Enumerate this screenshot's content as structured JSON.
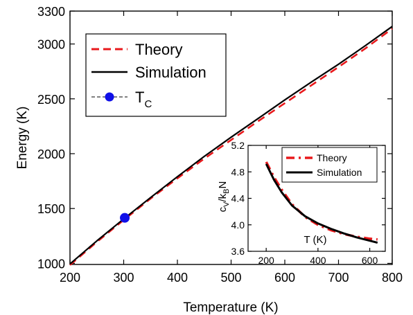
{
  "chart_data": [
    {
      "type": "line",
      "xlabel": "Temperature (K)",
      "ylabel": "Energy (K)",
      "xlim": [
        200,
        800
      ],
      "ylim": [
        990,
        3300
      ],
      "xticks": [
        200,
        300,
        400,
        500,
        600,
        700,
        800
      ],
      "yticks": [
        1000,
        1500,
        2000,
        2500,
        3000,
        3300
      ],
      "grid": false,
      "legend_position": "top-left",
      "series": [
        {
          "name": "Theory",
          "style": "dashed",
          "color": "#e8191c",
          "x": [
            200,
            250,
            300,
            350,
            400,
            450,
            500,
            550,
            600,
            650,
            700,
            750,
            800
          ],
          "y": [
            985,
            1195,
            1395,
            1590,
            1775,
            1955,
            2125,
            2295,
            2460,
            2625,
            2790,
            2960,
            3140
          ]
        },
        {
          "name": "Simulation",
          "style": "solid",
          "color": "#000000",
          "x": [
            200,
            250,
            300,
            350,
            400,
            450,
            500,
            550,
            600,
            650,
            700,
            750,
            800
          ],
          "y": [
            995,
            1205,
            1405,
            1600,
            1790,
            1975,
            2150,
            2320,
            2490,
            2655,
            2815,
            2985,
            3160
          ]
        },
        {
          "name": "T",
          "name_subscript": "C",
          "style": "marker",
          "color": "#1010e8",
          "x": [
            302
          ],
          "y": [
            1415
          ]
        }
      ]
    },
    {
      "type": "line",
      "xlabel": "T (K)",
      "ylabel": "c",
      "ylabel_parts": [
        "c",
        "V",
        "/k",
        "B",
        "N"
      ],
      "xlim": [
        130,
        660
      ],
      "ylim": [
        3.6,
        5.2
      ],
      "xticks": [
        200,
        400,
        600
      ],
      "yticks": [
        3.6,
        4.0,
        4.4,
        4.8,
        5.2
      ],
      "grid": false,
      "legend_position": "top-right",
      "series": [
        {
          "name": "Theory",
          "style": "dashed",
          "color": "#e8191c",
          "x": [
            200,
            230,
            260,
            300,
            350,
            400,
            450,
            500,
            550,
            600,
            630
          ],
          "y": [
            4.95,
            4.72,
            4.53,
            4.31,
            4.12,
            4.0,
            3.92,
            3.86,
            3.82,
            3.79,
            3.78
          ]
        },
        {
          "name": "Simulation",
          "style": "solid",
          "color": "#000000",
          "x": [
            200,
            230,
            260,
            300,
            350,
            400,
            450,
            500,
            550,
            600,
            630
          ],
          "y": [
            4.92,
            4.68,
            4.49,
            4.29,
            4.13,
            4.02,
            3.94,
            3.87,
            3.81,
            3.76,
            3.73
          ]
        }
      ]
    }
  ]
}
